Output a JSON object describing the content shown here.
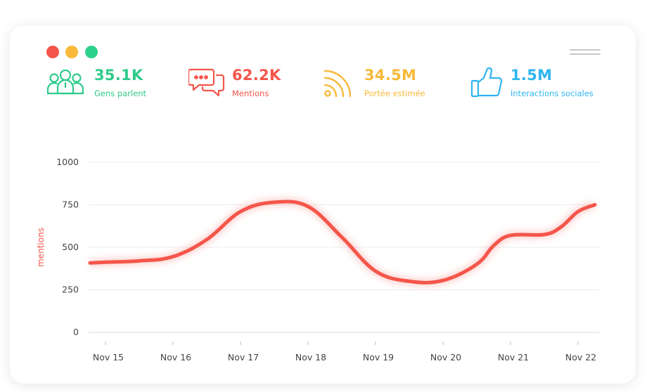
{
  "window": {
    "dot_colors": [
      "#f5554a",
      "#f8b93b",
      "#2ed18b"
    ]
  },
  "stats": [
    {
      "value": "35.1K",
      "label": "Gens parlent",
      "color": "#2ecb8a",
      "icon": "people-group-icon"
    },
    {
      "value": "62.2K",
      "label": "Mentions",
      "color": "#f5554a",
      "icon": "chat-bubbles-icon"
    },
    {
      "value": "34.5M",
      "label": "Portée estimée",
      "color": "#f8b93b",
      "icon": "rss-feed-icon"
    },
    {
      "value": "1.5M",
      "label": "Interactions sociales",
      "color": "#2fb5ee",
      "icon": "thumbs-up-icon"
    }
  ],
  "chart_data": {
    "type": "line",
    "ylabel": "mentions",
    "xlabel": "",
    "ylim": [
      0,
      1000
    ],
    "yticks": [
      "1000",
      "750",
      "500",
      "250",
      "0"
    ],
    "categories": [
      "Nov 15",
      "Nov 16",
      "Nov 17",
      "Nov 18",
      "Nov 19",
      "Nov 20",
      "Nov 21",
      "Nov 22"
    ],
    "series": [
      {
        "color": "#f5554a",
        "x": [
          14.75,
          15.0,
          15.5,
          16.0,
          16.5,
          17.0,
          17.5,
          18.0,
          18.5,
          19.0,
          19.5,
          20.0,
          20.5,
          20.75,
          21.0,
          21.5,
          21.75,
          22.0,
          22.25
        ],
        "values": [
          408,
          412,
          420,
          445,
          545,
          710,
          765,
          740,
          560,
          360,
          300,
          305,
          400,
          510,
          570,
          575,
          620,
          710,
          750
        ]
      }
    ],
    "grid": true
  }
}
